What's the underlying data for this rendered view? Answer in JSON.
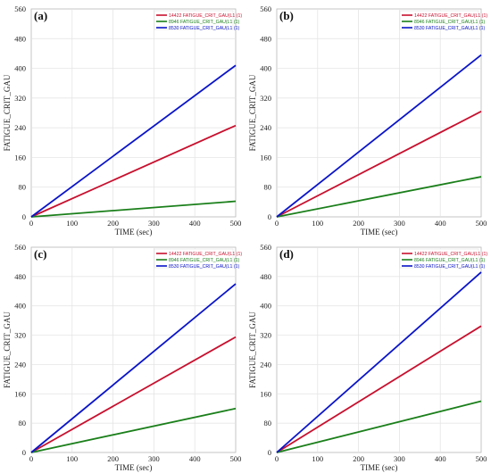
{
  "chart_data": [
    {
      "type": "line",
      "panel_label": "(a)",
      "xlabel": "TIME (sec)",
      "ylabel": "FATIGUE_CRIT_GAU",
      "xlim": [
        0,
        500
      ],
      "ylim": [
        0,
        560
      ],
      "xticks": [
        0,
        100,
        200,
        300,
        400,
        500
      ],
      "yticks": [
        0,
        80,
        160,
        240,
        320,
        400,
        480,
        560
      ],
      "grid": true,
      "legend_position": "top-right",
      "series": [
        {
          "name": "14422 FATIGUE_CRIT_GAU(L1 (1)",
          "color": "#c8102e",
          "x": [
            0,
            500
          ],
          "y": [
            0,
            246
          ]
        },
        {
          "name": "8946 FATIGUE_CRIT_GAU(L1 (1)",
          "color": "#1a7f1a",
          "x": [
            0,
            500
          ],
          "y": [
            0,
            42
          ]
        },
        {
          "name": "8530 FATIGUE_CRIT_GAU(L1 (1)",
          "color": "#0a14c8",
          "x": [
            0,
            500
          ],
          "y": [
            0,
            408
          ]
        }
      ]
    },
    {
      "type": "line",
      "panel_label": "(b)",
      "xlabel": "TIME (sec)",
      "ylabel": "FATIGUE_CRIT_GAU",
      "xlim": [
        0,
        500
      ],
      "ylim": [
        0,
        560
      ],
      "xticks": [
        0,
        100,
        200,
        300,
        400,
        500
      ],
      "yticks": [
        0,
        80,
        160,
        240,
        320,
        400,
        480,
        560
      ],
      "grid": true,
      "legend_position": "top-right",
      "series": [
        {
          "name": "14422 FATIGUE_CRIT_GAU(L1 (1)",
          "color": "#c8102e",
          "x": [
            0,
            500
          ],
          "y": [
            0,
            284
          ]
        },
        {
          "name": "8946 FATIGUE_CRIT_GAU(L1 (1)",
          "color": "#1a7f1a",
          "x": [
            0,
            500
          ],
          "y": [
            0,
            108
          ]
        },
        {
          "name": "8530 FATIGUE_CRIT_GAU(L1 (1)",
          "color": "#0a14c8",
          "x": [
            0,
            500
          ],
          "y": [
            0,
            436
          ]
        }
      ]
    },
    {
      "type": "line",
      "panel_label": "(c)",
      "xlabel": "TIME (sec)",
      "ylabel": "FATIGUE_CRIT_GAU",
      "xlim": [
        0,
        500
      ],
      "ylim": [
        0,
        560
      ],
      "xticks": [
        0,
        100,
        200,
        300,
        400,
        500
      ],
      "yticks": [
        0,
        80,
        160,
        240,
        320,
        400,
        480,
        560
      ],
      "grid": true,
      "legend_position": "top-right",
      "series": [
        {
          "name": "14422 FATIGUE_CRIT_GAU(L1 (1)",
          "color": "#c8102e",
          "x": [
            0,
            500
          ],
          "y": [
            0,
            315
          ]
        },
        {
          "name": "8946 FATIGUE_CRIT_GAU(L1 (1)",
          "color": "#1a7f1a",
          "x": [
            0,
            500
          ],
          "y": [
            0,
            120
          ]
        },
        {
          "name": "8530 FATIGUE_CRIT_GAU(L1 (1)",
          "color": "#0a14c8",
          "x": [
            0,
            500
          ],
          "y": [
            0,
            460
          ]
        }
      ]
    },
    {
      "type": "line",
      "panel_label": "(d)",
      "xlabel": "TIME (sec)",
      "ylabel": "FATIGUE_CRIT_GAU",
      "xlim": [
        0,
        500
      ],
      "ylim": [
        0,
        560
      ],
      "xticks": [
        0,
        100,
        200,
        300,
        400,
        500
      ],
      "yticks": [
        0,
        80,
        160,
        240,
        320,
        400,
        480,
        560
      ],
      "grid": true,
      "legend_position": "top-right",
      "series": [
        {
          "name": "14422 FATIGUE_CRIT_GAU(L1 (1)",
          "color": "#c8102e",
          "x": [
            0,
            500
          ],
          "y": [
            0,
            345
          ]
        },
        {
          "name": "8946 FATIGUE_CRIT_GAU(L1 (1)",
          "color": "#1a7f1a",
          "x": [
            0,
            500
          ],
          "y": [
            0,
            140
          ]
        },
        {
          "name": "8530 FATIGUE_CRIT_GAU(L1 (1)",
          "color": "#0a14c8",
          "x": [
            0,
            500
          ],
          "y": [
            0,
            492
          ]
        }
      ]
    }
  ]
}
